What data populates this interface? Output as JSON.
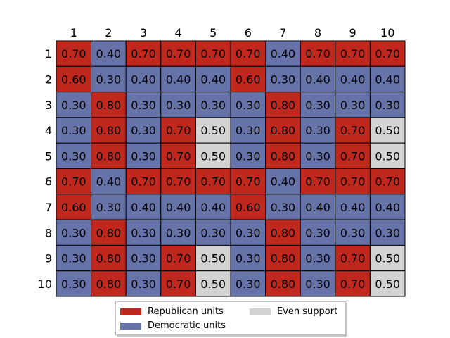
{
  "chart_data": {
    "type": "heatmap",
    "title": "",
    "x_categories": [
      "1",
      "2",
      "3",
      "4",
      "5",
      "6",
      "7",
      "8",
      "9",
      "10"
    ],
    "y_categories": [
      "1",
      "2",
      "3",
      "4",
      "5",
      "6",
      "7",
      "8",
      "9",
      "10"
    ],
    "values": [
      [
        0.7,
        0.4,
        0.7,
        0.7,
        0.7,
        0.7,
        0.4,
        0.7,
        0.7,
        0.7
      ],
      [
        0.6,
        0.3,
        0.4,
        0.4,
        0.4,
        0.6,
        0.3,
        0.4,
        0.4,
        0.4
      ],
      [
        0.3,
        0.8,
        0.3,
        0.3,
        0.3,
        0.3,
        0.8,
        0.3,
        0.3,
        0.3
      ],
      [
        0.3,
        0.8,
        0.3,
        0.7,
        0.5,
        0.3,
        0.8,
        0.3,
        0.7,
        0.5
      ],
      [
        0.3,
        0.8,
        0.3,
        0.7,
        0.5,
        0.3,
        0.8,
        0.3,
        0.7,
        0.5
      ],
      [
        0.7,
        0.4,
        0.7,
        0.7,
        0.7,
        0.7,
        0.4,
        0.7,
        0.7,
        0.7
      ],
      [
        0.6,
        0.3,
        0.4,
        0.4,
        0.4,
        0.6,
        0.3,
        0.4,
        0.4,
        0.4
      ],
      [
        0.3,
        0.8,
        0.3,
        0.3,
        0.3,
        0.3,
        0.8,
        0.3,
        0.3,
        0.3
      ],
      [
        0.3,
        0.8,
        0.3,
        0.7,
        0.5,
        0.3,
        0.8,
        0.3,
        0.7,
        0.5
      ],
      [
        0.3,
        0.8,
        0.3,
        0.7,
        0.5,
        0.3,
        0.8,
        0.3,
        0.7,
        0.5
      ]
    ],
    "value_format": "0.00",
    "color_rule": "value > 0.5 republican; value < 0.5 democratic; value = 0.5 even",
    "x_axis_position": "top",
    "legend_placement": "bottom-center",
    "legend": [
      {
        "label": "Republican units",
        "color": "#c0281e"
      },
      {
        "label": "Democratic units",
        "color": "#6673a8"
      },
      {
        "label": "Even support",
        "color": "#d3d3d3"
      }
    ]
  },
  "colors": {
    "republican": "#c0281e",
    "democratic": "#6673a8",
    "even": "#d3d3d3",
    "cell_border": "#000000",
    "text": "#000000"
  }
}
